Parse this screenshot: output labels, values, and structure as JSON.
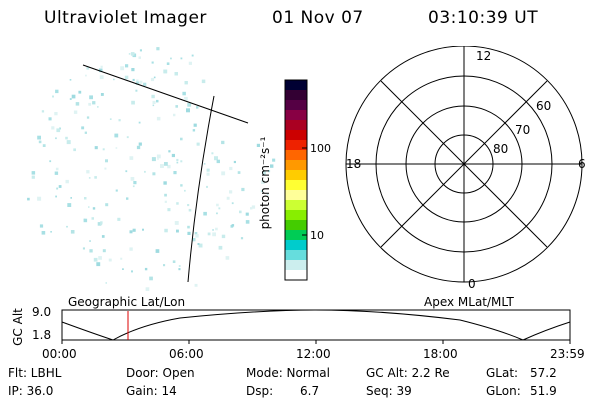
{
  "header": {
    "title": "Ultraviolet Imager",
    "date": "01 Nov 07",
    "time": "03:10:39 UT"
  },
  "colorbar": {
    "unit_label": "photon cm⁻²s⁻¹",
    "ticks": [
      "100",
      "10"
    ],
    "colors": [
      "#000033",
      "#330033",
      "#550044",
      "#880044",
      "#aa0022",
      "#cc0000",
      "#ee2200",
      "#ff6600",
      "#ff9900",
      "#ffcc00",
      "#ffff33",
      "#ffff99",
      "#ccff33",
      "#88ee00",
      "#44cc00",
      "#00cc55",
      "#00cccc",
      "#66dddd",
      "#cceeee",
      "#ffffff"
    ]
  },
  "polar_plot": {
    "mlt_labels": [
      "12",
      "18",
      "6",
      "0"
    ],
    "lat_labels": [
      "60",
      "70",
      "80"
    ]
  },
  "timeline": {
    "y_axis_label": "GC Alt",
    "y_ticks": [
      "9.0",
      "1.8"
    ],
    "left_label": "Geographic Lat/Lon",
    "right_label": "Apex MLat/MLT",
    "x_ticks": [
      "00:00",
      "06:00",
      "12:00",
      "18:00",
      "23:59"
    ],
    "marker_color": "#dd0000"
  },
  "info": {
    "filter": "Flt: LBHL",
    "ip": "IP: 36.0",
    "door": "Door: Open",
    "gain": "Gain: 14",
    "mode": "Mode: Normal",
    "dsp_label": "Dsp:",
    "dsp_value": "6.7",
    "gc_alt": "GC Alt: 2.2 Re",
    "seq": "Seq: 39",
    "glat_label": "GLat:",
    "glat_value": "57.2",
    "glon_label": "GLon:",
    "glon_value": "51.9"
  }
}
